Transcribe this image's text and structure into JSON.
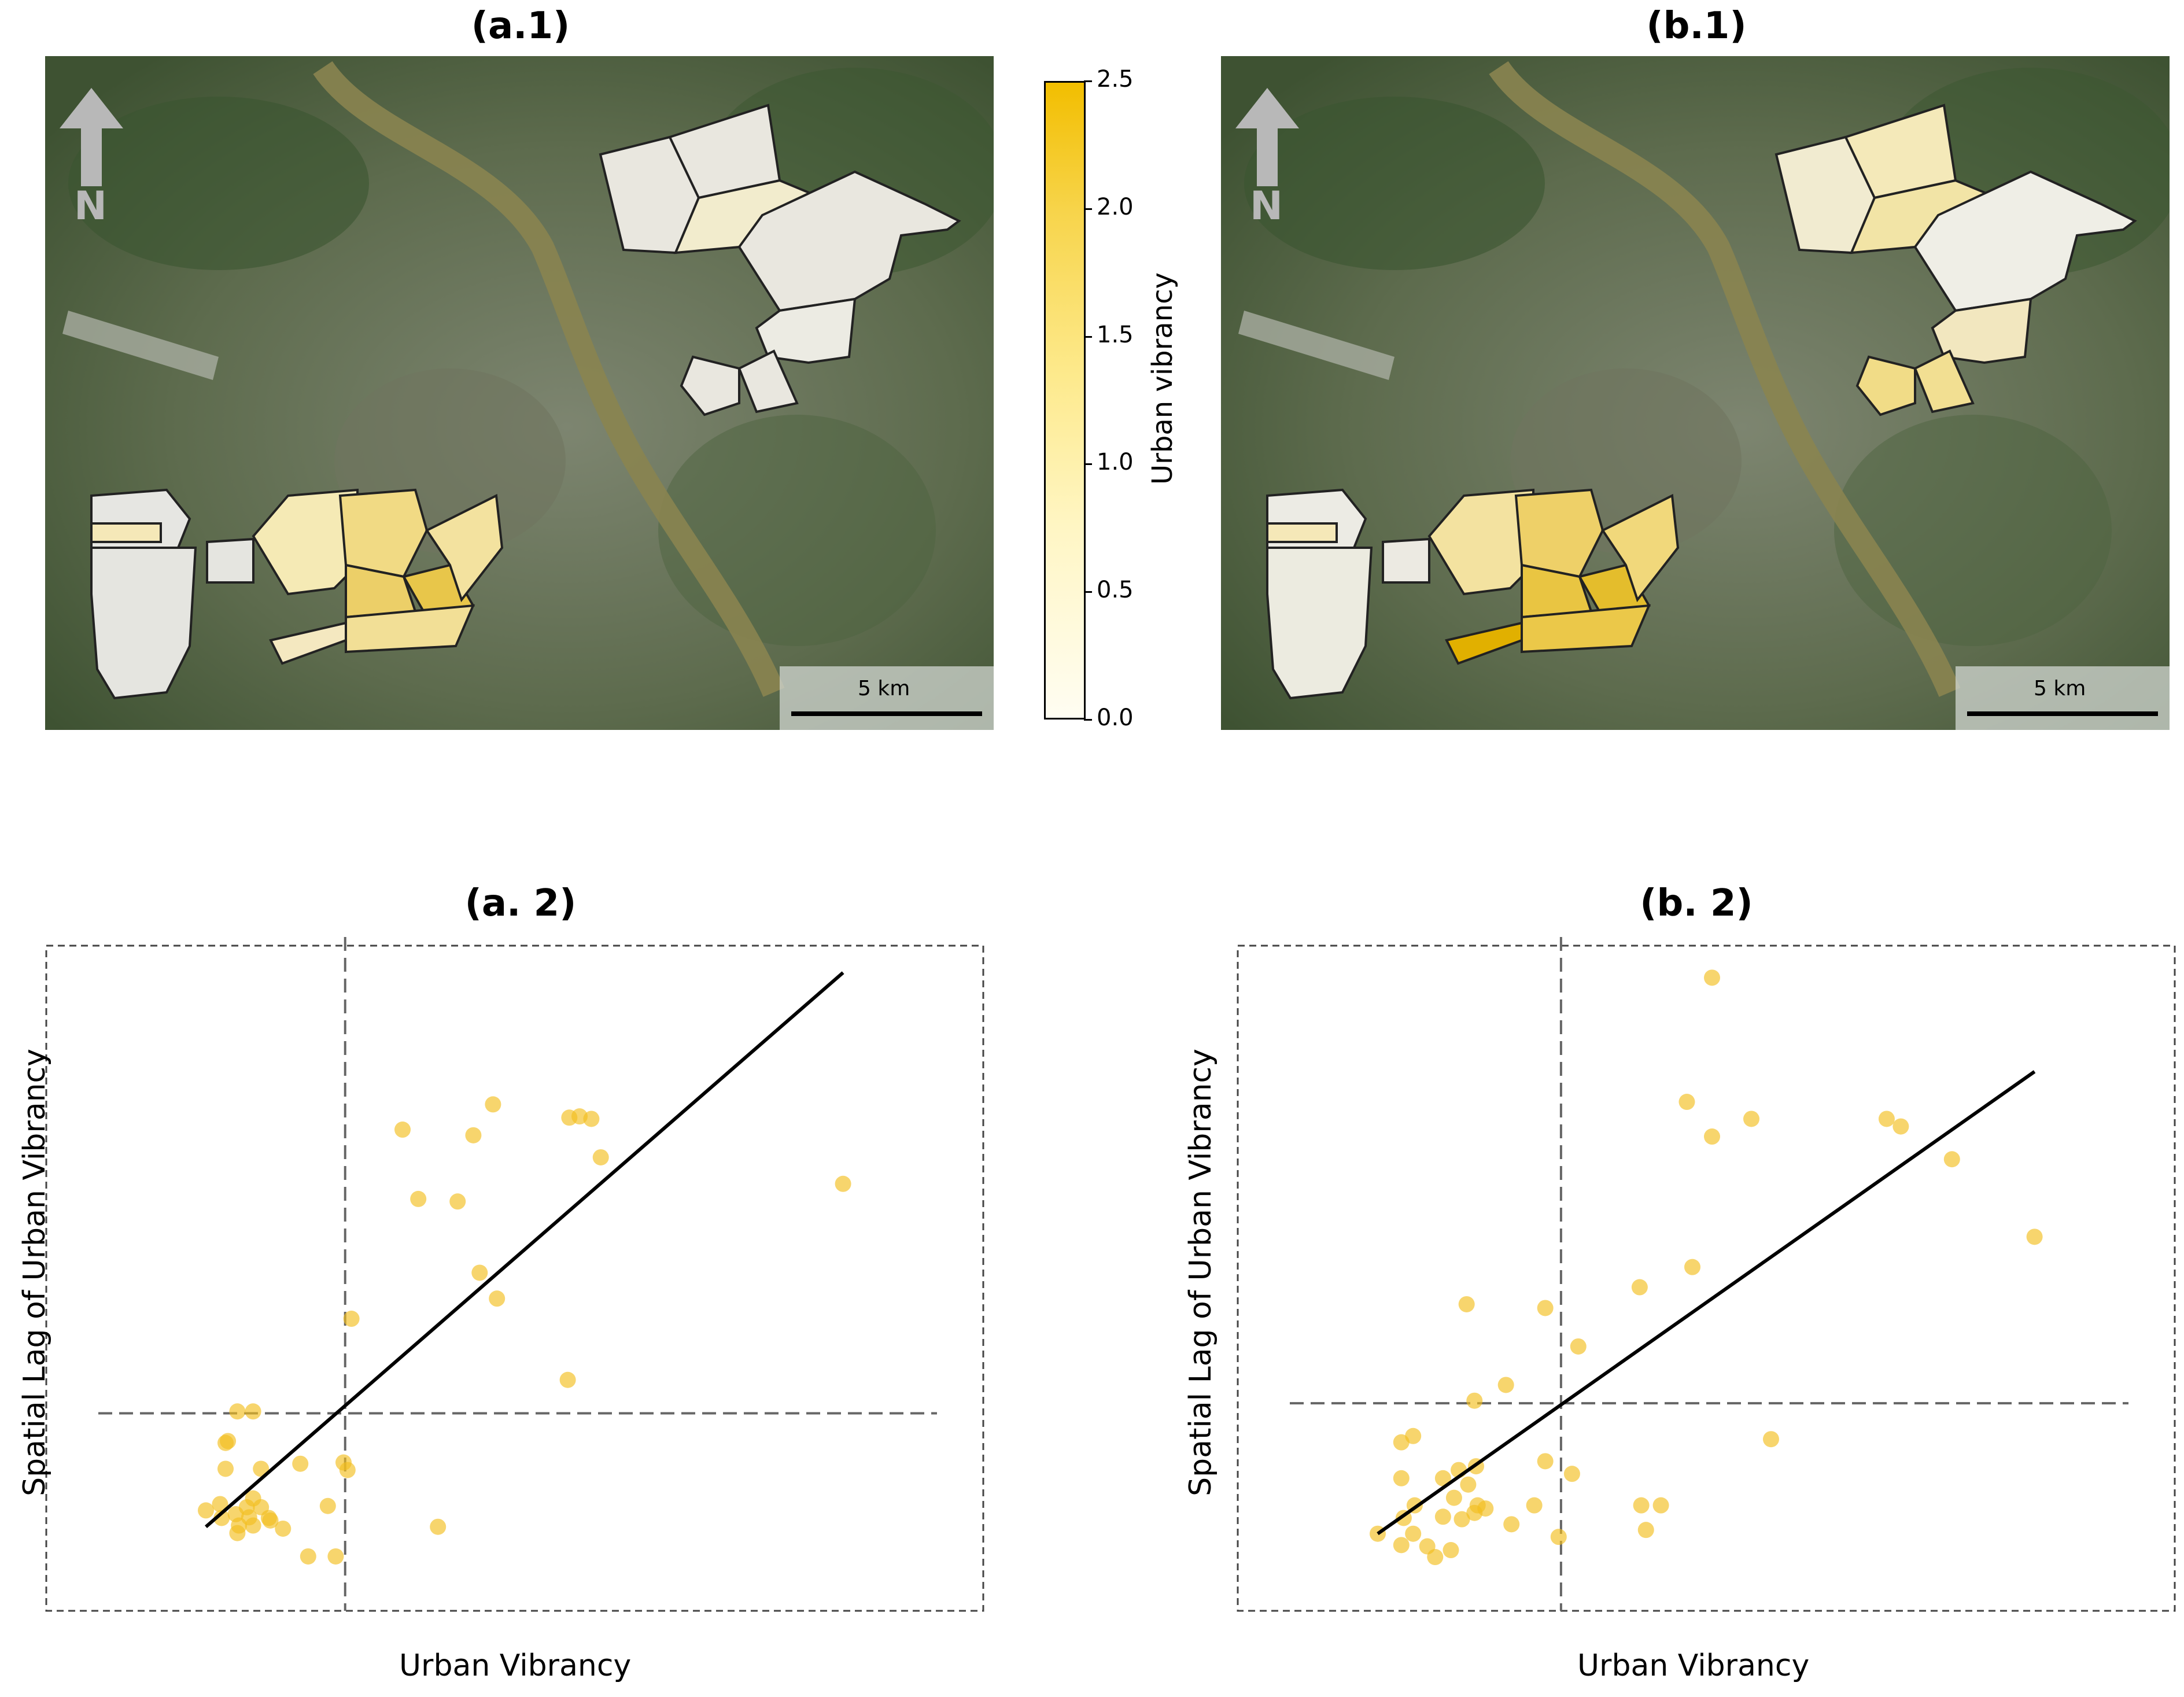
{
  "panels": {
    "a1_title": "(a.1)",
    "b1_title": "(b.1)",
    "a2_title": "(a. 2)",
    "b2_title": "(b. 2)"
  },
  "maps": {
    "scale_label": "5 km",
    "north_label": "N"
  },
  "colorbar": {
    "label": "Urban vibrancy",
    "ticks": [
      "0.0",
      "0.5",
      "1.0",
      "1.5",
      "2.0",
      "2.5"
    ],
    "min": 0,
    "max": 2.5,
    "color_low": "#fffdf2",
    "color_high": "#f2be00"
  },
  "chart_data": [
    {
      "panel": "(a. 2)",
      "type": "scatter",
      "xlabel": "Urban Vibrancy",
      "ylabel": "Spatial Lag of Urban Vibrancy",
      "point_color": "#f2be1e",
      "xlim": [
        0,
        100
      ],
      "ylim": [
        0,
        100
      ],
      "mean_x": 27.7,
      "mean_y": 27.2,
      "regression": {
        "x0": 10,
        "y0": 9.2,
        "x1": 91,
        "y1": 97.1
      },
      "points": [
        [
          10,
          11.8
        ],
        [
          12,
          10.6
        ],
        [
          14,
          8.2
        ],
        [
          16,
          13.7
        ],
        [
          18,
          10.6
        ],
        [
          17,
          18.4
        ],
        [
          12.5,
          18.4
        ],
        [
          12.5,
          22.5
        ],
        [
          12.8,
          22.8
        ],
        [
          14,
          27.5
        ],
        [
          16,
          27.5
        ],
        [
          11.8,
          12.8
        ],
        [
          13.8,
          11.2
        ],
        [
          14.2,
          9.4
        ],
        [
          15.2,
          12.3
        ],
        [
          15.5,
          10.7
        ],
        [
          17,
          12.3
        ],
        [
          16,
          9.4
        ],
        [
          18.2,
          10.2
        ],
        [
          19.8,
          8.9
        ],
        [
          22,
          19.2
        ],
        [
          23,
          4.5
        ],
        [
          25.5,
          12.5
        ],
        [
          26.5,
          4.5
        ],
        [
          27.5,
          19.4
        ],
        [
          28,
          18.2
        ],
        [
          28.5,
          42.2
        ],
        [
          35,
          72.2
        ],
        [
          37,
          61.2
        ],
        [
          39.5,
          9.2
        ],
        [
          42,
          60.8
        ],
        [
          44,
          71.3
        ],
        [
          44.8,
          49.5
        ],
        [
          46.5,
          76.2
        ],
        [
          47,
          45.4
        ],
        [
          56,
          32.5
        ],
        [
          56.2,
          74.1
        ],
        [
          57.5,
          74.3
        ],
        [
          59,
          73.9
        ],
        [
          60.2,
          67.8
        ],
        [
          91,
          63.6
        ]
      ]
    },
    {
      "panel": "(b. 2)",
      "type": "scatter",
      "xlabel": "Urban Vibrancy",
      "ylabel": "Spatial Lag of Urban Vibrancy",
      "point_color": "#f2be1e",
      "xlim": [
        0,
        100
      ],
      "ylim": [
        0,
        100
      ],
      "mean_x": 30.8,
      "mean_y": 28.8,
      "regression": {
        "x0": 7.5,
        "y0": 8.1,
        "x1": 91,
        "y1": 81.4
      },
      "points": [
        [
          7.5,
          8.1
        ],
        [
          10.5,
          6.3
        ],
        [
          12,
          8.1
        ],
        [
          13.8,
          6.1
        ],
        [
          14.8,
          4.4
        ],
        [
          16.8,
          5.5
        ],
        [
          10.8,
          10.6
        ],
        [
          12.2,
          12.6
        ],
        [
          15.8,
          10.8
        ],
        [
          17.2,
          13.8
        ],
        [
          18.2,
          10.4
        ],
        [
          19.8,
          11.4
        ],
        [
          10.5,
          16.9
        ],
        [
          12,
          23.6
        ],
        [
          10.5,
          22.6
        ],
        [
          15.8,
          16.9
        ],
        [
          17.8,
          18.2
        ],
        [
          19,
          15.9
        ],
        [
          20,
          18.8
        ],
        [
          20.2,
          12.6
        ],
        [
          21.2,
          12.1
        ],
        [
          19.8,
          29.2
        ],
        [
          23.8,
          31.7
        ],
        [
          18.8,
          44.5
        ],
        [
          24.5,
          9.6
        ],
        [
          27.4,
          12.6
        ],
        [
          28.8,
          19.6
        ],
        [
          28.8,
          43.9
        ],
        [
          30.5,
          7.6
        ],
        [
          32.2,
          17.6
        ],
        [
          33,
          37.8
        ],
        [
          40.8,
          47.2
        ],
        [
          41,
          12.6
        ],
        [
          41.6,
          8.7
        ],
        [
          43.5,
          12.6
        ],
        [
          46.8,
          76.6
        ],
        [
          47.5,
          50.4
        ],
        [
          50,
          96.3
        ],
        [
          50,
          71.1
        ],
        [
          55,
          73.9
        ],
        [
          57.5,
          23.1
        ],
        [
          72.2,
          73.9
        ],
        [
          74,
          72.7
        ],
        [
          80.5,
          67.5
        ],
        [
          91,
          55.2
        ]
      ]
    }
  ]
}
